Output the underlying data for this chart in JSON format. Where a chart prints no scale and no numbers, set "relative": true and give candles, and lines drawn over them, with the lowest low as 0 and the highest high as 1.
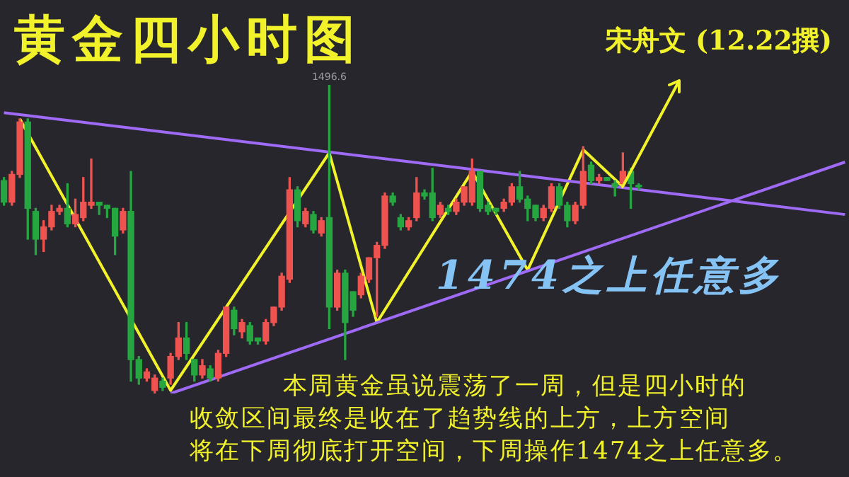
{
  "chart_data": {
    "type": "candlestick",
    "title": "黄金四小时图",
    "relative": true,
    "legend": false,
    "annotations": [
      "宋舟文 (12.22撰)",
      "1474之上任意多",
      "本周黄金虽说震荡了一周，但是四小时的",
      "收敛区间最终是收在了趋势线的上方，上方空间",
      "将在下周彻底打开空间，下周操作1474之上任意多。",
      {
        "text": "1496.6",
        "y": 1
      }
    ],
    "categories": [
      null,
      null,
      null,
      null,
      null,
      null,
      null,
      null,
      null,
      null,
      null,
      null,
      null,
      null,
      null,
      null,
      null,
      null,
      null,
      null,
      null,
      null,
      null,
      null,
      null,
      null,
      null,
      null,
      null,
      null,
      null,
      null,
      null,
      null,
      null,
      null,
      null,
      null,
      null,
      null,
      null,
      null,
      null,
      null,
      null,
      null,
      null,
      null,
      null,
      null,
      null,
      null,
      null,
      null,
      null,
      null,
      null,
      null,
      null,
      null,
      null,
      null,
      null,
      null,
      null,
      null,
      null,
      null,
      null,
      null,
      null,
      null,
      null,
      null,
      null,
      null,
      null,
      null,
      null,
      null,
      null,
      null,
      null,
      null,
      null,
      null,
      null,
      null,
      null,
      null,
      null,
      null,
      null,
      null,
      null,
      null,
      null,
      null,
      null,
      null,
      null,
      null,
      null,
      null,
      null,
      null,
      null
    ],
    "ohlc": [
      [
        0.69,
        0.7,
        0.61,
        0.62
      ],
      [
        0.62,
        0.72,
        0.61,
        0.71
      ],
      [
        0.71,
        0.89,
        0.7,
        0.88
      ],
      [
        0.88,
        0.89,
        0.5,
        0.6
      ],
      [
        0.59,
        0.6,
        0.45,
        0.5
      ],
      [
        0.5,
        0.56,
        0.46,
        0.54
      ],
      [
        0.54,
        0.61,
        0.53,
        0.59
      ],
      [
        0.59,
        0.61,
        0.58,
        0.6
      ],
      [
        0.6,
        0.68,
        0.54,
        0.55
      ],
      [
        0.55,
        0.63,
        0.54,
        0.58
      ],
      [
        0.57,
        0.7,
        0.56,
        0.62
      ],
      [
        0.61,
        0.76,
        0.6,
        0.62
      ],
      [
        0.62,
        0.62,
        0.58,
        0.61
      ],
      [
        0.61,
        0.61,
        0.57,
        0.6
      ],
      [
        0.6,
        0.6,
        0.45,
        0.51
      ],
      [
        0.53,
        0.6,
        0.52,
        0.59
      ],
      [
        0.59,
        0.72,
        0.04,
        0.11
      ],
      [
        0.11,
        0.12,
        0.03,
        0.05
      ],
      [
        0.05,
        0.08,
        0.04,
        0.07
      ],
      [
        0.01,
        0.06,
        0,
        0.05
      ],
      [
        0.04,
        0.05,
        0.01,
        0.02
      ],
      [
        0.05,
        0.13,
        0.03,
        0.12
      ],
      [
        0.12,
        0.23,
        0.11,
        0.18
      ],
      [
        0.18,
        0.23,
        0.11,
        0.13
      ],
      [
        0.11,
        0.11,
        0.04,
        0.06
      ],
      [
        0.06,
        0.11,
        0.05,
        0.09
      ],
      [
        0.08,
        0.09,
        0.04,
        0.05
      ],
      [
        0.05,
        0.14,
        0.04,
        0.13
      ],
      [
        0.13,
        0.28,
        0.12,
        0.28
      ],
      [
        0.27,
        0.28,
        0.19,
        0.21
      ],
      [
        0.2,
        0.24,
        0.18,
        0.23
      ],
      [
        0.22,
        0.23,
        0.16,
        0.17
      ],
      [
        0.18,
        0.18,
        0.16,
        0.17
      ],
      [
        0.17,
        0.24,
        0.16,
        0.23
      ],
      [
        0.23,
        0.28,
        0.22,
        0.28
      ],
      [
        0.28,
        0.39,
        0.27,
        0.38
      ],
      [
        0.37,
        0.7,
        0.36,
        0.66
      ],
      [
        0.66,
        0.67,
        0.54,
        0.56
      ],
      [
        0.55,
        0.6,
        0.54,
        0.59
      ],
      [
        0.58,
        0.59,
        0.52,
        0.53
      ],
      [
        0.52,
        0.57,
        0.51,
        0.56
      ],
      [
        0.57,
        1,
        0.21,
        0.28
      ],
      [
        0.28,
        0.4,
        0.27,
        0.39
      ],
      [
        0.39,
        0.4,
        0.11,
        0.23
      ],
      [
        0.33,
        0.33,
        0.25,
        0.27
      ],
      [
        0.32,
        0.39,
        0.31,
        0.38
      ],
      [
        0.37,
        0.44,
        0.36,
        0.44
      ],
      [
        0.44,
        0.49,
        0.25,
        0.48
      ],
      [
        0.48,
        0.65,
        0.47,
        0.64
      ],
      [
        0.64,
        0.65,
        0.61,
        0.62
      ],
      [
        0.57,
        0.58,
        0.53,
        0.54
      ],
      [
        0.54,
        0.57,
        0.53,
        0.56
      ],
      [
        0.57,
        0.7,
        0.56,
        0.65
      ],
      [
        0.65,
        0.66,
        0.63,
        0.64
      ],
      [
        0.65,
        0.73,
        0.56,
        0.57
      ],
      [
        0.58,
        0.62,
        0.57,
        0.61
      ],
      [
        0.6,
        0.61,
        0.58,
        0.59
      ],
      [
        0.59,
        0.63,
        0.58,
        0.62
      ],
      [
        0.62,
        0.67,
        0.61,
        0.67
      ],
      [
        0.62,
        0.76,
        0.61,
        0.72
      ],
      [
        0.72,
        0.72,
        0.59,
        0.6
      ],
      [
        0.61,
        0.62,
        0.58,
        0.59
      ],
      [
        0.6,
        0.6,
        0.58,
        0.59
      ],
      [
        0.6,
        0.63,
        0.59,
        0.62
      ],
      [
        0.62,
        0.68,
        0.61,
        0.67
      ],
      [
        0.67,
        0.72,
        0.62,
        0.63
      ],
      [
        0.63,
        0.64,
        0.56,
        0.6
      ],
      [
        0.61,
        0.61,
        0.56,
        0.57
      ],
      [
        0.57,
        0.61,
        0.56,
        0.6
      ],
      [
        0.6,
        0.68,
        0.59,
        0.67
      ],
      [
        0.67,
        0.68,
        0.6,
        0.61
      ],
      [
        0.61,
        0.62,
        0.54,
        0.56
      ],
      [
        0.56,
        0.62,
        0.55,
        0.61
      ],
      [
        0.61,
        0.8,
        0.6,
        0.72
      ],
      [
        0.74,
        0.75,
        0.68,
        0.69
      ],
      [
        0.69,
        0.71,
        0.68,
        0.7
      ],
      [
        0.7,
        0.7,
        0.69,
        0.69
      ],
      [
        0.68,
        0.69,
        0.64,
        0.67
      ],
      [
        0.68,
        0.78,
        0.67,
        0.72
      ],
      [
        0.72,
        0.73,
        0.6,
        0.68
      ],
      [
        0.67,
        0.68,
        0.66,
        0.67
      ],
      null,
      null,
      null,
      null,
      null,
      null,
      null,
      null,
      null,
      null,
      null,
      null,
      null,
      null,
      null,
      null,
      null,
      null,
      null,
      null,
      null,
      null,
      null,
      null,
      null,
      null
    ],
    "colors": [
      "#26a641",
      "#ef5350",
      "#ef5350",
      "#26a641",
      "#26a641",
      "#ef5350",
      "#ef5350",
      "#ef5350",
      "#26a641",
      "#ef5350",
      "#ef5350",
      "#ef5350",
      "#26a641",
      "#26a641",
      "#26a641",
      "#ef5350",
      "#26a641",
      "#26a641",
      "#ef5350",
      "#ef5350",
      "#26a641",
      "#ef5350",
      "#ef5350",
      "#26a641",
      "#26a641",
      "#ef5350",
      "#26a641",
      "#ef5350",
      "#ef5350",
      "#26a641",
      "#ef5350",
      "#26a641",
      "#26a641",
      "#ef5350",
      "#ef5350",
      "#ef5350",
      "#ef5350",
      "#26a641",
      "#ef5350",
      "#26a641",
      "#ef5350",
      "#26a641",
      "#ef5350",
      "#26a641",
      "#26a641",
      "#ef5350",
      "#ef5350",
      "#ef5350",
      "#ef5350",
      "#26a641",
      "#26a641",
      "#ef5350",
      "#ef5350",
      "#26a641",
      "#26a641",
      "#ef5350",
      "#26a641",
      "#ef5350",
      "#ef5350",
      "#ef5350",
      "#26a641",
      "#26a641",
      "#26a641",
      "#ef5350",
      "#ef5350",
      "#26a641",
      "#26a641",
      "#26a641",
      "#ef5350",
      "#ef5350",
      "#26a641",
      "#26a641",
      "#ef5350",
      "#ef5350",
      "#26a641",
      "#ef5350",
      "#26a641",
      "#26a641",
      "#ef5350",
      "#26a641",
      "#26a641",
      null,
      null,
      null,
      null,
      null,
      null,
      null,
      null,
      null,
      null,
      null,
      null,
      null,
      null,
      null,
      null,
      null,
      null,
      null,
      null,
      null,
      null,
      null,
      null,
      null,
      null
    ],
    "series": [
      {
        "type": "line",
        "color": "#9f6af5",
        "values": [
          0.91,
          null,
          null,
          null,
          null,
          null,
          null,
          null,
          null,
          null,
          null,
          null,
          null,
          null,
          null,
          null,
          null,
          null,
          null,
          null,
          null,
          null,
          null,
          null,
          null,
          null,
          null,
          null,
          null,
          null,
          null,
          null,
          null,
          null,
          null,
          null,
          null,
          null,
          null,
          null,
          null,
          null,
          null,
          null,
          null,
          null,
          null,
          null,
          null,
          null,
          null,
          null,
          null,
          null,
          null,
          null,
          null,
          null,
          null,
          null,
          null,
          null,
          null,
          null,
          null,
          null,
          null,
          null,
          null,
          null,
          null,
          null,
          null,
          null,
          null,
          null,
          null,
          null,
          null,
          null,
          null,
          null,
          null,
          null,
          null,
          null,
          null,
          null,
          null,
          null,
          null,
          null,
          null,
          null,
          null,
          null,
          null,
          null,
          null,
          null,
          null,
          null,
          null,
          null,
          null,
          null,
          0.58
        ]
      },
      {
        "type": "line",
        "color": "#9f6af5",
        "values": [
          null,
          null,
          null,
          null,
          null,
          null,
          null,
          null,
          null,
          null,
          null,
          null,
          null,
          null,
          null,
          null,
          null,
          null,
          null,
          null,
          null,
          0,
          null,
          null,
          null,
          null,
          null,
          null,
          null,
          null,
          null,
          null,
          null,
          null,
          null,
          null,
          null,
          null,
          null,
          null,
          null,
          null,
          null,
          null,
          null,
          null,
          null,
          null,
          null,
          null,
          null,
          null,
          null,
          null,
          null,
          null,
          null,
          null,
          null,
          null,
          null,
          null,
          null,
          null,
          null,
          null,
          null,
          null,
          null,
          null,
          null,
          null,
          null,
          null,
          null,
          null,
          null,
          null,
          null,
          null,
          null,
          null,
          null,
          null,
          null,
          null,
          null,
          null,
          null,
          null,
          null,
          null,
          null,
          null,
          null,
          null,
          null,
          null,
          null,
          null,
          null,
          null,
          null,
          null,
          null,
          null,
          0.75
        ]
      },
      {
        "type": "line",
        "color": "#f2f22a",
        "values": [
          null,
          null,
          0.89,
          null,
          null,
          null,
          null,
          null,
          null,
          null,
          null,
          null,
          null,
          null,
          null,
          null,
          null,
          null,
          null,
          null,
          null,
          0.01,
          null,
          null,
          null,
          null,
          null,
          null,
          null,
          null,
          null,
          null,
          null,
          null,
          null,
          null,
          null,
          null,
          null,
          null,
          null,
          0.78,
          null,
          null,
          null,
          null,
          null,
          0.23,
          null,
          null,
          null,
          null,
          null,
          null,
          null,
          null,
          null,
          null,
          null,
          0.72,
          null,
          null,
          null,
          null,
          null,
          null,
          0.4,
          null,
          null,
          null,
          null,
          null,
          null,
          0.79,
          null,
          null,
          null,
          null,
          0.67,
          null,
          null,
          null,
          null,
          null,
          null,
          null,
          null,
          null,
          null,
          null,
          null,
          null,
          null,
          null,
          null,
          null,
          null,
          null,
          null,
          null,
          null,
          null,
          null,
          null,
          null,
          null,
          null
        ]
      }
    ]
  }
}
